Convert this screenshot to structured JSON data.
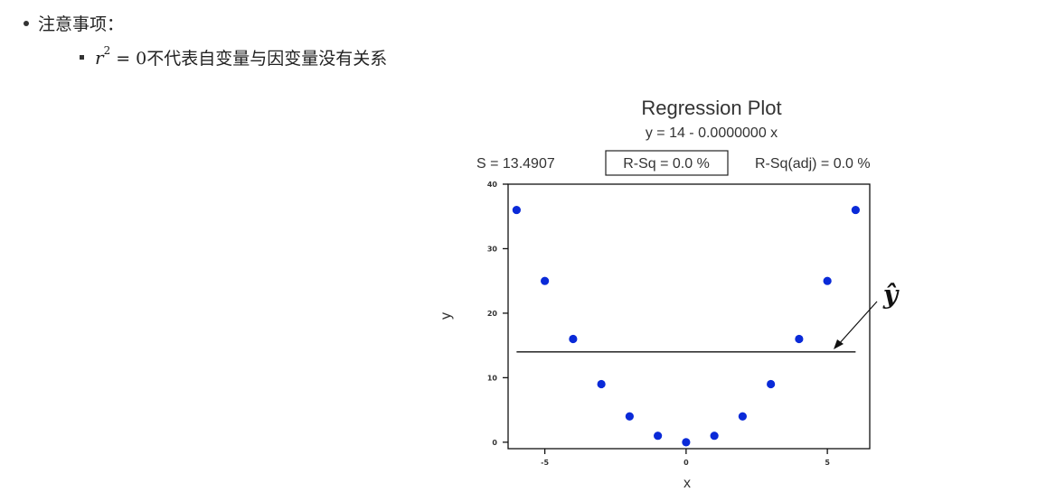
{
  "notes": {
    "heading": "注意事项：",
    "item_math_var": "r",
    "item_math_sup": "2",
    "item_math_eq": "=",
    "item_math_zero": "0",
    "item_text": "不代表自变量与因变量没有关系"
  },
  "chart_data": {
    "type": "scatter",
    "title": "Regression Plot",
    "subtitle": "y = 14 - 0.0000000 x",
    "stats": {
      "s": "S = 13.4907",
      "rsq": "R-Sq = 0.0 %",
      "rsq_adj": "R-Sq(adj) = 0.0 %"
    },
    "xlabel": "x",
    "ylabel": "y",
    "xlim": [
      -6.3,
      6.5
    ],
    "ylim": [
      -1,
      40
    ],
    "xticks": [
      -5,
      0,
      5
    ],
    "yticks": [
      0,
      10,
      20,
      30,
      40
    ],
    "x": [
      -6,
      -5,
      -4,
      -3,
      -2,
      -1,
      0,
      1,
      2,
      3,
      4,
      5,
      6
    ],
    "y": [
      36,
      25,
      16,
      9,
      4,
      1,
      0,
      1,
      4,
      9,
      16,
      25,
      36
    ],
    "regression_line": {
      "intercept": 14,
      "slope": 0,
      "x_range": [
        -6,
        6
      ]
    },
    "annotation": "ŷ",
    "point_color": "#0a2ad8",
    "line_color": "#111111",
    "grid": false
  }
}
